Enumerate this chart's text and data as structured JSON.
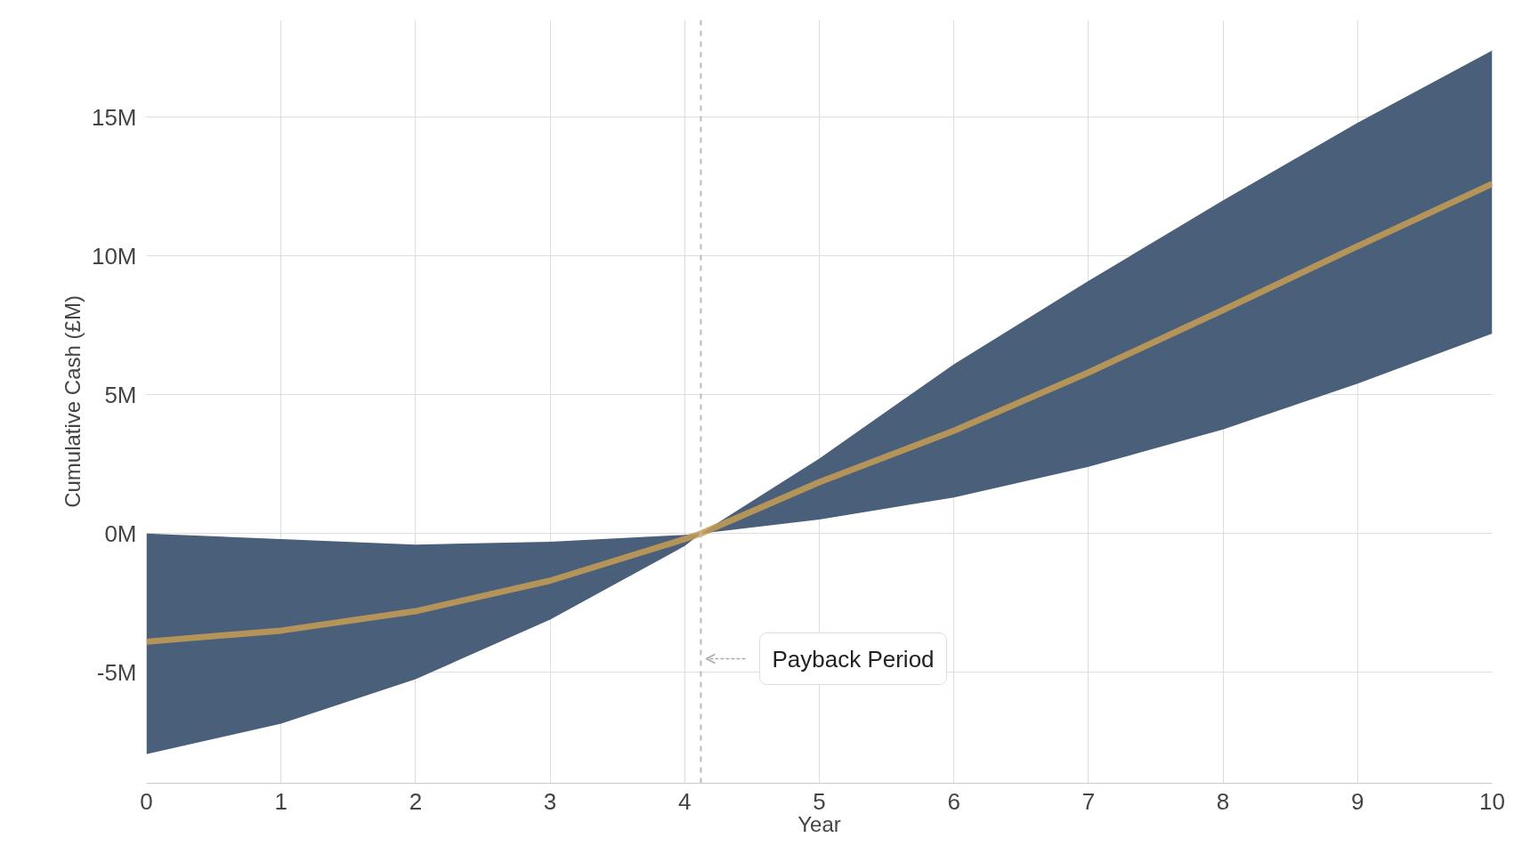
{
  "chart_data": {
    "type": "line",
    "xlabel": "Year",
    "ylabel": "Cumulative Cash (£M)",
    "x": [
      0,
      1,
      2,
      3,
      4,
      4.12,
      5,
      6,
      7,
      8,
      9,
      10
    ],
    "series": [
      {
        "color": "#c79d52",
        "values": [
          -3.9,
          -3.5,
          -2.8,
          -1.7,
          -0.2,
          0,
          1.85,
          3.7,
          5.8,
          8.05,
          10.35,
          12.6
        ],
        "lower": [
          -7.95,
          -6.85,
          -5.25,
          -3.1,
          -0.45,
          0,
          0.5,
          1.3,
          2.4,
          3.75,
          5.4,
          7.2
        ],
        "upper": [
          0,
          -0.2,
          -0.4,
          -0.3,
          -0.05,
          0,
          2.7,
          6.1,
          9.1,
          12.0,
          14.8,
          17.4
        ]
      }
    ],
    "xlim": [
      0,
      10
    ],
    "ylim": [
      -9,
      18.5
    ],
    "xticks": [
      0,
      1,
      2,
      3,
      4,
      5,
      6,
      7,
      8,
      9,
      10
    ],
    "yticks": [
      {
        "value": -5,
        "label": "-5M"
      },
      {
        "value": 0,
        "label": "0M"
      },
      {
        "value": 5,
        "label": "5M"
      },
      {
        "value": 10,
        "label": "10M"
      },
      {
        "value": 15,
        "label": "15M"
      }
    ],
    "grid": true,
    "marker": "none",
    "line_style": "solid",
    "ref_lines": [
      {
        "axis": "x",
        "value": 4.12,
        "label": "Payback Period",
        "color": "#bbbbbb",
        "line_style": "dashed"
      }
    ]
  }
}
